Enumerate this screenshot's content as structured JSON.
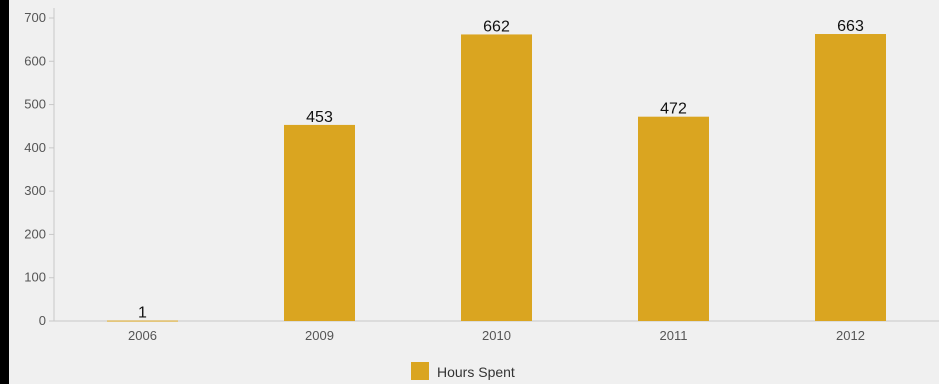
{
  "chart_data": {
    "type": "bar",
    "categories": [
      "2006",
      "2009",
      "2010",
      "2011",
      "2012"
    ],
    "series": [
      {
        "name": "Hours Spent",
        "values": [
          1,
          453,
          662,
          472,
          663
        ]
      }
    ],
    "data_labels": [
      "1",
      "453",
      "662",
      "472",
      "663"
    ],
    "title": "",
    "xlabel": "",
    "ylabel": "",
    "ylim": [
      0,
      700
    ],
    "yticks": [
      "0",
      "100",
      "200",
      "300",
      "400",
      "500",
      "600",
      "700"
    ],
    "grid": false,
    "legend": "bottom-center",
    "colors": {
      "bar": "#daa520",
      "axis": "#c8c8c8"
    }
  }
}
